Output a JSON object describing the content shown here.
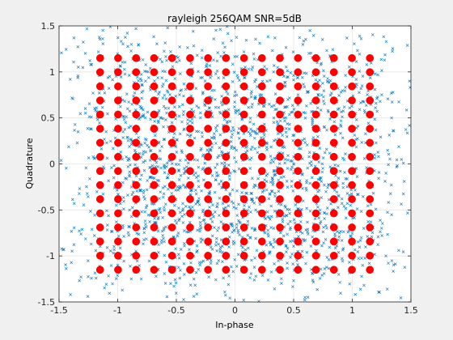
{
  "chart_data": {
    "type": "scatter",
    "title": "rayleigh 256QAM SNR=5dB",
    "xlabel": "In-phase",
    "ylabel": "Quadrature",
    "xlim": [
      -1.5,
      1.5
    ],
    "ylim": [
      -1.5,
      1.5
    ],
    "grid": true,
    "legend": "none",
    "xticks": [
      "-1.5",
      "-1",
      "-0.5",
      "0",
      "0.5",
      "1",
      "1.5"
    ],
    "yticks": [
      "-1.5",
      "-1",
      "-0.5",
      "0",
      "0.5",
      "1",
      "1.5"
    ],
    "xtick_values": [
      -1.5,
      -1,
      -0.5,
      0,
      0.5,
      1,
      1.5
    ],
    "ytick_values": [
      -1.5,
      -1,
      -0.5,
      0,
      0.5,
      1,
      1.5
    ],
    "series": [
      {
        "marker": "x",
        "color": "#0072bd",
        "description": "received symbols (noisy)",
        "values": []
      },
      {
        "marker": "filled-circle",
        "color": "#ff0000",
        "description": "ideal 256QAM constellation",
        "levels": [
          -1.15,
          -0.997,
          -0.843,
          -0.69,
          -0.537,
          -0.383,
          -0.23,
          -0.077,
          0.077,
          0.23,
          0.383,
          0.537,
          0.69,
          0.843,
          0.997,
          1.15
        ]
      }
    ]
  }
}
